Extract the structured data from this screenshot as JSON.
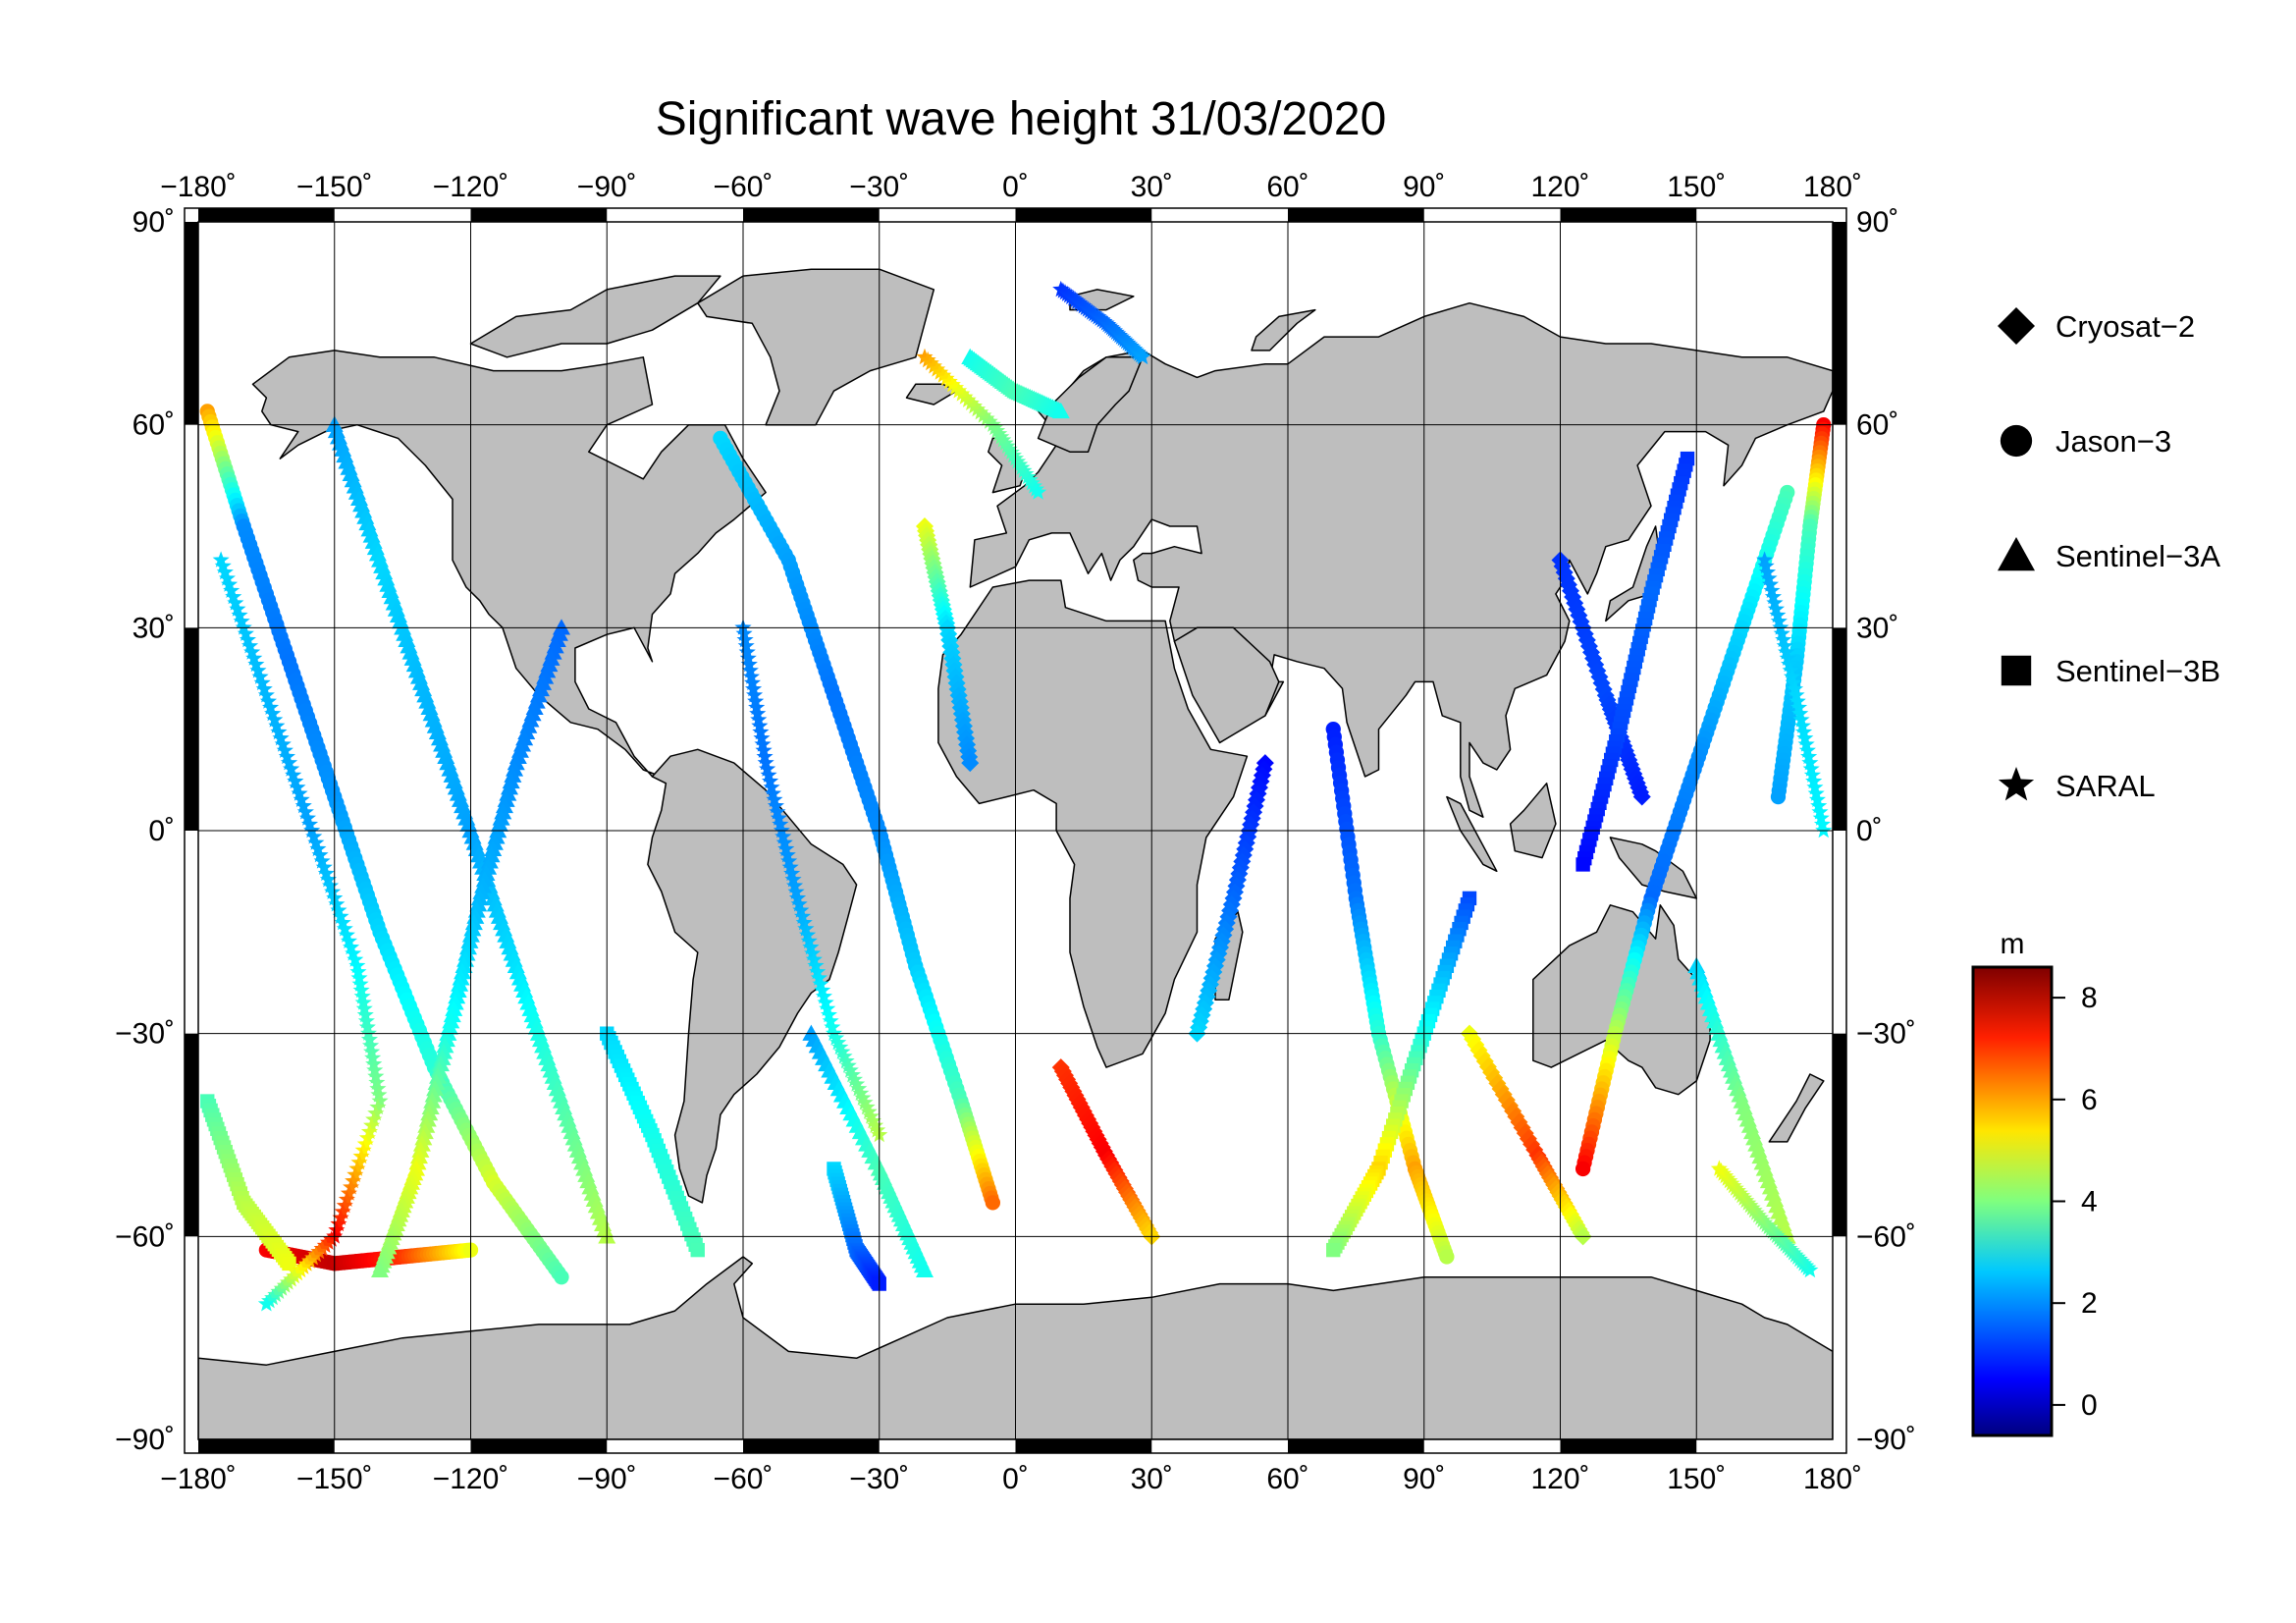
{
  "title": "Significant wave height 31/03/2020",
  "map": {
    "projection": "equirectangular",
    "lon_range": [
      -180,
      180
    ],
    "lat_range": [
      -90,
      90
    ],
    "grid": true,
    "land_color": "#bebebe",
    "ocean_color": "#ffffff",
    "lon_ticks": [
      -180,
      -150,
      -120,
      -90,
      -60,
      -30,
      0,
      30,
      60,
      90,
      120,
      150,
      180
    ],
    "lat_ticks": [
      90,
      60,
      30,
      0,
      -30,
      -60,
      -90
    ],
    "lon_tick_labels": [
      "−180˚",
      "−150˚",
      "−120˚",
      "−90˚",
      "−60˚",
      "−30˚",
      "0˚",
      "30˚",
      "60˚",
      "90˚",
      "120˚",
      "150˚",
      "180˚"
    ],
    "lat_tick_labels": [
      "90˚",
      "60˚",
      "30˚",
      "0˚",
      "−30˚",
      "−60˚",
      "−90˚"
    ]
  },
  "legend": {
    "placement": "right",
    "items": [
      {
        "label": "Cryosat−2",
        "marker": "diamond"
      },
      {
        "label": "Jason−3",
        "marker": "circle"
      },
      {
        "label": "Sentinel−3A",
        "marker": "triangle"
      },
      {
        "label": "Sentinel−3B",
        "marker": "square"
      },
      {
        "label": "SARAL",
        "marker": "star"
      }
    ]
  },
  "colorbar": {
    "unit": "m",
    "range": [
      -0.6,
      8.6
    ],
    "ticks": [
      0,
      2,
      4,
      6,
      8
    ],
    "tick_labels": [
      "0",
      "2",
      "4",
      "6",
      "8"
    ],
    "colormap": "jet"
  },
  "chart_data": {
    "type": "scatter",
    "title": "Significant wave height 31/03/2020",
    "x_unit": "longitude (degrees)",
    "y_unit": "latitude (degrees)",
    "value_unit": "m",
    "xlim": [
      -180,
      180
    ],
    "ylim": [
      -90,
      90
    ],
    "color_range": [
      -0.6,
      8.6
    ],
    "series": [
      {
        "name": "Cryosat−2",
        "marker": "diamond",
        "tracks": [
          [
            [
              10,
              -35,
              7.0
            ],
            [
              20,
              -48,
              7.5
            ],
            [
              30,
              -60,
              5.5
            ]
          ],
          [
            [
              100,
              -30,
              5.0
            ],
            [
              115,
              -48,
              7.0
            ],
            [
              125,
              -60,
              4.5
            ]
          ],
          [
            [
              120,
              40,
              1.0
            ],
            [
              130,
              20,
              1.2
            ],
            [
              138,
              5,
              0.8
            ]
          ],
          [
            [
              -20,
              45,
              5.0
            ],
            [
              -15,
              30,
              2.5
            ],
            [
              -10,
              10,
              1.8
            ]
          ],
          [
            [
              55,
              10,
              0.6
            ],
            [
              48,
              -10,
              1.5
            ],
            [
              40,
              -30,
              2.5
            ]
          ]
        ]
      },
      {
        "name": "Jason−3",
        "marker": "circle",
        "tracks": [
          [
            [
              -178,
              62,
              6.0
            ],
            [
              -170,
              45,
              1.8
            ],
            [
              -160,
              25,
              1.6
            ],
            [
              -150,
              5,
              1.9
            ],
            [
              -140,
              -15,
              2.5
            ],
            [
              -128,
              -35,
              3.2
            ],
            [
              -115,
              -52,
              4.8
            ],
            [
              -100,
              -66,
              3.5
            ]
          ],
          [
            [
              -165,
              -62,
              7.5
            ],
            [
              -150,
              -64,
              8.0
            ],
            [
              -135,
              -63,
              7.0
            ],
            [
              -120,
              -62,
              5.0
            ]
          ],
          [
            [
              -65,
              58,
              2.5
            ],
            [
              -50,
              40,
              2.0
            ],
            [
              -40,
              20,
              1.6
            ],
            [
              -30,
              0,
              1.8
            ],
            [
              -22,
              -20,
              2.4
            ],
            [
              -12,
              -40,
              3.5
            ],
            [
              -5,
              -55,
              6.5
            ]
          ],
          [
            [
              70,
              15,
              0.8
            ],
            [
              75,
              -10,
              1.6
            ],
            [
              80,
              -30,
              3.2
            ],
            [
              88,
              -50,
              6.0
            ],
            [
              95,
              -63,
              4.5
            ]
          ],
          [
            [
              170,
              50,
              3.5
            ],
            [
              160,
              30,
              2.5
            ],
            [
              150,
              10,
              1.8
            ],
            [
              140,
              -10,
              1.5
            ],
            [
              132,
              -30,
              4.5
            ],
            [
              125,
              -50,
              7.5
            ]
          ],
          [
            [
              178,
              60,
              7.5
            ],
            [
              175,
              45,
              3.5
            ],
            [
              172,
              25,
              2.4
            ],
            [
              168,
              5,
              2.0
            ]
          ]
        ]
      },
      {
        "name": "Sentinel−3A",
        "marker": "triangle",
        "tracks": [
          [
            [
              -150,
              60,
              2.0
            ],
            [
              -140,
              40,
              2.5
            ],
            [
              -130,
              20,
              2.2
            ],
            [
              -120,
              0,
              2.0
            ],
            [
              -110,
              -20,
              2.6
            ],
            [
              -100,
              -40,
              3.5
            ],
            [
              -90,
              -60,
              4.5
            ]
          ],
          [
            [
              -100,
              30,
              1.5
            ],
            [
              -110,
              10,
              1.8
            ],
            [
              -118,
              -10,
              2.2
            ],
            [
              -125,
              -30,
              3.0
            ],
            [
              -132,
              -50,
              5.0
            ],
            [
              -140,
              -65,
              4.0
            ]
          ],
          [
            [
              -45,
              -30,
              2.0
            ],
            [
              -30,
              -50,
              3.5
            ],
            [
              -20,
              -65,
              3.0
            ]
          ],
          [
            [
              150,
              -20,
              2.5
            ],
            [
              160,
              -40,
              4.0
            ],
            [
              170,
              -60,
              4.5
            ]
          ],
          [
            [
              -10,
              70,
              3.0
            ],
            [
              0,
              65,
              3.5
            ],
            [
              10,
              62,
              3.0
            ]
          ]
        ]
      },
      {
        "name": "Sentinel−3B",
        "marker": "square",
        "tracks": [
          [
            [
              -90,
              -30,
              2.5
            ],
            [
              -80,
              -45,
              3.0
            ],
            [
              -70,
              -62,
              3.5
            ]
          ],
          [
            [
              -40,
              -50,
              2.5
            ],
            [
              -35,
              -62,
              1.5
            ],
            [
              -30,
              -67,
              0.8
            ]
          ],
          [
            [
              148,
              55,
              1.0
            ],
            [
              140,
              35,
              1.5
            ],
            [
              133,
              15,
              1.2
            ],
            [
              125,
              -5,
              0.6
            ]
          ],
          [
            [
              100,
              -10,
              1.2
            ],
            [
              90,
              -30,
              3.0
            ],
            [
              80,
              -50,
              5.5
            ],
            [
              70,
              -62,
              4.0
            ]
          ],
          [
            [
              -178,
              -40,
              3.5
            ],
            [
              -170,
              -55,
              4.5
            ],
            [
              -160,
              -64,
              5.0
            ]
          ]
        ]
      },
      {
        "name": "SARAL",
        "marker": "star",
        "tracks": [
          [
            [
              10,
              80,
              1.0
            ],
            [
              20,
              75,
              1.5
            ],
            [
              28,
              70,
              2.0
            ]
          ],
          [
            [
              -175,
              40,
              2.5
            ],
            [
              -165,
              20,
              2.2
            ],
            [
              -155,
              0,
              2.0
            ],
            [
              -145,
              -20,
              2.8
            ],
            [
              -140,
              -40,
              4.0
            ],
            [
              -150,
              -60,
              7.5
            ],
            [
              -165,
              -70,
              3.0
            ]
          ],
          [
            [
              -60,
              30,
              1.8
            ],
            [
              -55,
              10,
              1.6
            ],
            [
              -48,
              -10,
              2.0
            ],
            [
              -40,
              -30,
              3.0
            ],
            [
              -30,
              -45,
              4.5
            ]
          ],
          [
            [
              165,
              40,
              2.0
            ],
            [
              172,
              20,
              2.5
            ],
            [
              178,
              0,
              2.8
            ]
          ],
          [
            [
              175,
              -65,
              3.0
            ],
            [
              165,
              -58,
              4.0
            ],
            [
              155,
              -50,
              5.0
            ]
          ],
          [
            [
              -20,
              70,
              6.0
            ],
            [
              -5,
              60,
              4.0
            ],
            [
              5,
              50,
              3.0
            ]
          ]
        ]
      }
    ]
  }
}
